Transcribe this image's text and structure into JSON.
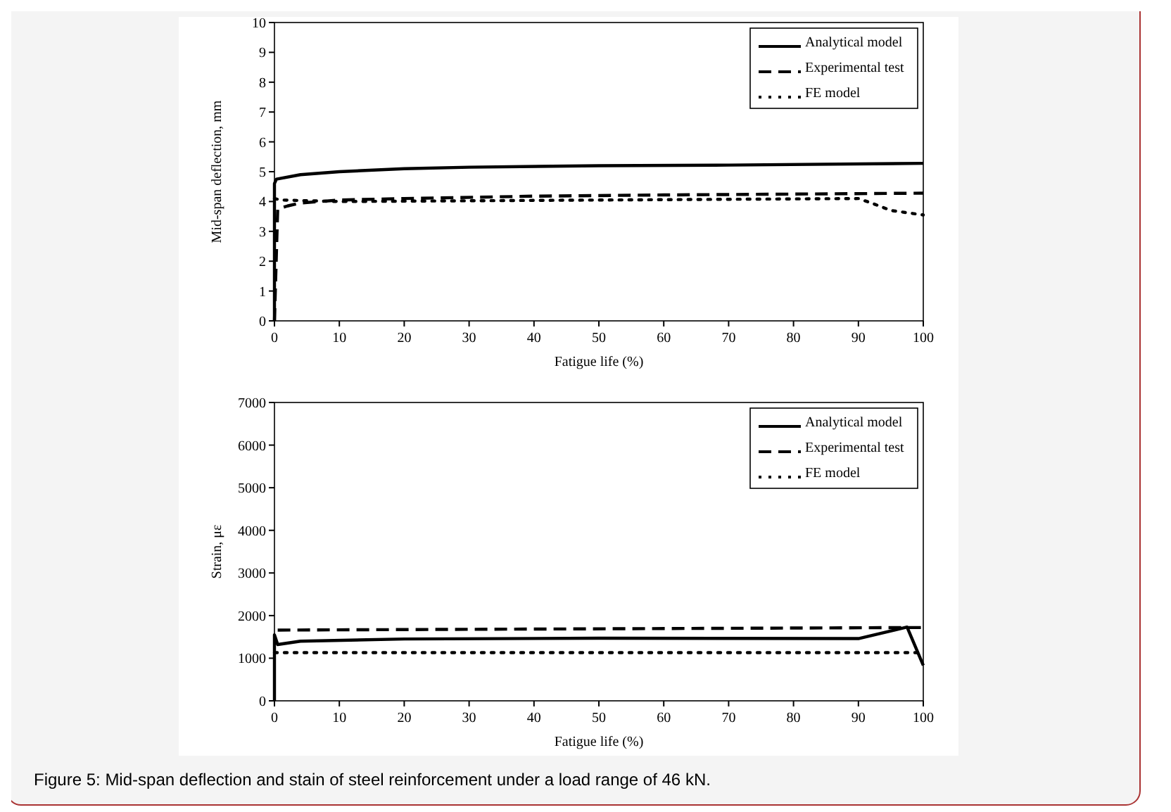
{
  "chart_data": [
    {
      "type": "line",
      "xlabel": "Fatigue life (%)",
      "ylabel": "Mid-span deflection, mm",
      "xlim": [
        0,
        100
      ],
      "ylim": [
        0,
        10
      ],
      "xticks": [
        0,
        10,
        20,
        30,
        40,
        50,
        60,
        70,
        80,
        90,
        100
      ],
      "yticks": [
        0,
        1,
        2,
        3,
        4,
        5,
        6,
        7,
        8,
        9,
        10
      ],
      "legend": "top right",
      "grid": false,
      "series": [
        {
          "name": "Analytical model",
          "color": "#000000",
          "line_style": "solid",
          "x": [
            0,
            0,
            0.3,
            4,
            10,
            20,
            30,
            50,
            70,
            100
          ],
          "values": [
            0,
            4.6,
            4.75,
            4.9,
            5.0,
            5.1,
            5.15,
            5.2,
            5.22,
            5.28
          ]
        },
        {
          "name": "Experimental test",
          "color": "#000000",
          "line_style": "dashed",
          "x": [
            0,
            0.5,
            2,
            4,
            10,
            20,
            40,
            60,
            100
          ],
          "values": [
            0,
            3.75,
            3.85,
            3.95,
            4.05,
            4.1,
            4.18,
            4.22,
            4.28
          ]
        },
        {
          "name": "FE model",
          "color": "#000000",
          "line_style": "dotted",
          "x": [
            0,
            1,
            10,
            50,
            90,
            92,
            95,
            100
          ],
          "values": [
            4.1,
            4.05,
            4.0,
            4.05,
            4.1,
            3.95,
            3.7,
            3.55
          ]
        }
      ]
    },
    {
      "type": "line",
      "xlabel": "Fatigue life (%)",
      "ylabel": "Strain, με",
      "xlim": [
        0,
        100
      ],
      "ylim": [
        0,
        7000
      ],
      "xticks": [
        0,
        10,
        20,
        30,
        40,
        50,
        60,
        70,
        80,
        90,
        100
      ],
      "yticks": [
        0,
        1000,
        2000,
        3000,
        4000,
        5000,
        6000,
        7000
      ],
      "legend": "top right",
      "grid": false,
      "annotations": [
        "Figure 5: Mid-span deflection and stain of steel reinforcement under a load range of 46 kN."
      ],
      "series": [
        {
          "name": "Analytical model",
          "color": "#000000",
          "line_style": "solid",
          "x": [
            0,
            0,
            0.5,
            4,
            20,
            50,
            90,
            97.5,
            100
          ],
          "values": [
            0,
            1550,
            1320,
            1400,
            1450,
            1470,
            1460,
            1730,
            830
          ]
        },
        {
          "name": "Experimental test",
          "color": "#000000",
          "line_style": "dashed",
          "x": [
            0.5,
            100
          ],
          "values": [
            1660,
            1720
          ]
        },
        {
          "name": "FE model",
          "color": "#000000",
          "line_style": "dotted",
          "x": [
            0,
            100
          ],
          "values": [
            1130,
            1130
          ]
        }
      ]
    }
  ]
}
